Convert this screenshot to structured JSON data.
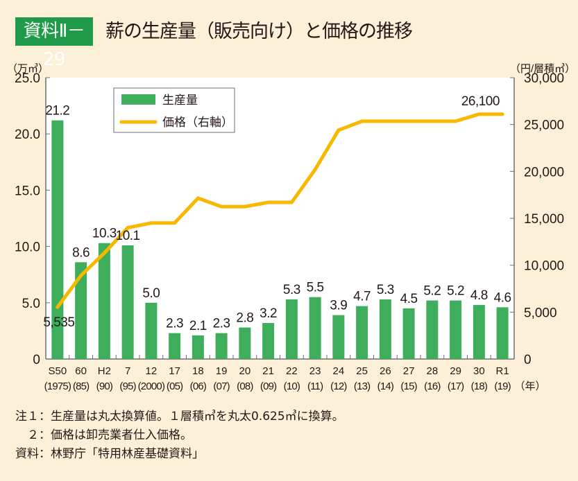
{
  "header": {
    "badge": "資料Ⅱ－29",
    "title": "薪の生産量（販売向け）と価格の推移"
  },
  "colors": {
    "badge": "#1f9a48",
    "bar": "#3fae5c",
    "line": "#f8b800",
    "background": "#fdf0d8",
    "plot": "#ffffff",
    "axis": "#6e6e6e"
  },
  "chart_data": {
    "type": "bar+line",
    "title": "薪の生産量（販売向け）と価格の推移",
    "categories": [
      "S50",
      "60",
      "H2",
      "7",
      "12",
      "17",
      "18",
      "19",
      "20",
      "21",
      "22",
      "23",
      "24",
      "25",
      "26",
      "27",
      "28",
      "29",
      "30",
      "R1"
    ],
    "category_sublabels": [
      "(1975)",
      "(85)",
      "(90)",
      "(95)",
      "(2000)",
      "(05)",
      "(06)",
      "(07)",
      "(08)",
      "(09)",
      "(10)",
      "(11)",
      "(12)",
      "(13)",
      "(14)",
      "(15)",
      "(16)",
      "(17)",
      "(18)",
      "(19)"
    ],
    "xlabel_unit": "（年）",
    "left_axis": {
      "label": "（万㎥）",
      "ylim": [
        0,
        25
      ],
      "ticks": [
        0,
        5,
        10,
        15,
        20,
        25
      ],
      "tick_labels": [
        "0",
        "5.0",
        "10.0",
        "15.0",
        "20.0",
        "25.0"
      ]
    },
    "right_axis": {
      "label": "（円/層積㎥）",
      "ylim": [
        0,
        30000
      ],
      "ticks": [
        0,
        5000,
        10000,
        15000,
        20000,
        25000,
        30000
      ],
      "tick_labels": [
        "0",
        "5,000",
        "10,000",
        "15,000",
        "20,000",
        "25,000",
        "30,000"
      ]
    },
    "series": [
      {
        "name": "生産量",
        "type": "bar",
        "axis": "left",
        "values": [
          21.2,
          8.6,
          10.3,
          10.1,
          5.0,
          2.3,
          2.1,
          2.3,
          2.8,
          3.2,
          5.3,
          5.5,
          3.9,
          4.7,
          5.3,
          4.5,
          5.2,
          5.2,
          4.8,
          4.6
        ],
        "value_labels": [
          "21.2",
          "8.6",
          "10.3",
          "10.1",
          "5.0",
          "2.3",
          "2.1",
          "2.3",
          "2.8",
          "3.2",
          "5.3",
          "5.5",
          "3.9",
          "4.7",
          "5.3",
          "4.5",
          "5.2",
          "5.2",
          "4.8",
          "4.6"
        ]
      },
      {
        "name": "価格（右軸）",
        "type": "line",
        "axis": "right",
        "values": [
          5535,
          8900,
          11300,
          14000,
          14500,
          14500,
          17150,
          16250,
          16250,
          16700,
          16700,
          20200,
          24400,
          25350,
          25350,
          25350,
          25350,
          25350,
          26100,
          26100
        ],
        "annotations": [
          {
            "index": 0,
            "text": "5,535"
          },
          {
            "index": 18,
            "text": "26,100"
          }
        ]
      }
    ],
    "legend": {
      "position": "top-left",
      "items": [
        "生産量",
        "価格（右軸）"
      ]
    },
    "grid": false
  },
  "notes": [
    "注１：生産量は丸太換算値。１層積㎥を丸太0.625㎥に換算。",
    "　２：価格は卸売業者仕入価格。",
    "資料：林野庁「特用林産基礎資料」"
  ]
}
